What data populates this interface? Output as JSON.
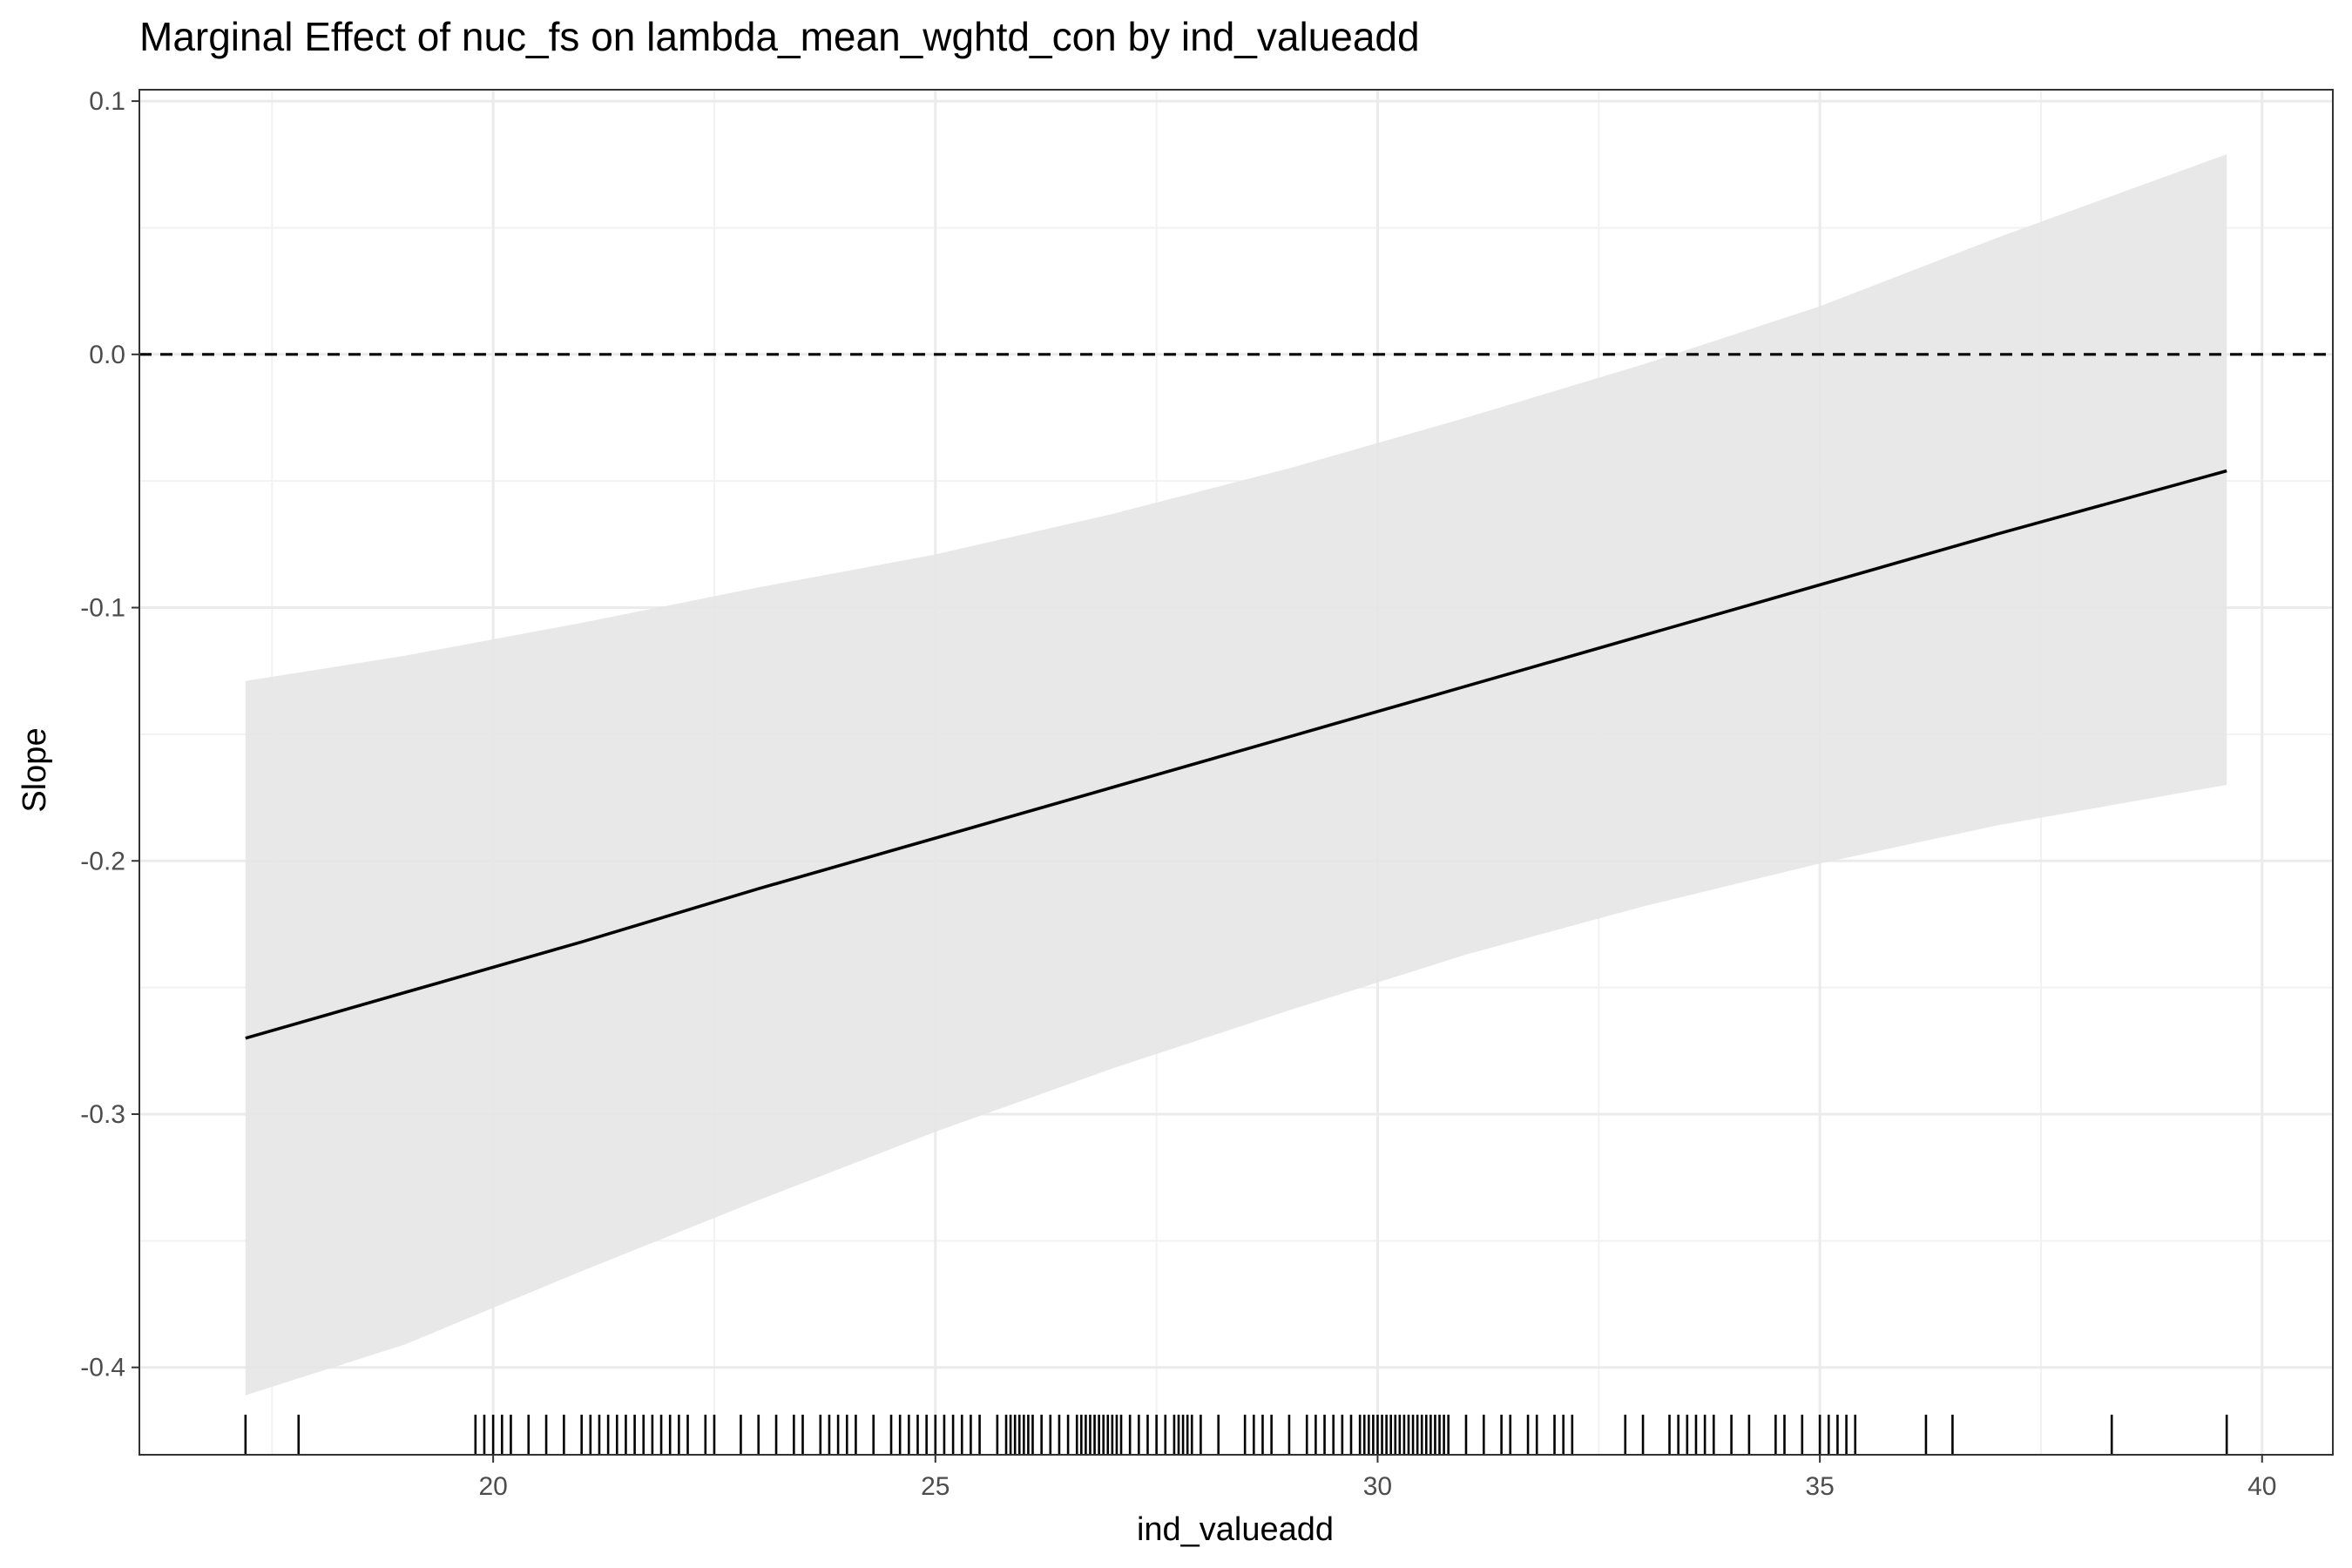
{
  "chart_data": {
    "type": "line",
    "title": "Marginal Effect of nuc_fs on lambda_mean_wghtd_con by ind_valueadd",
    "xlabel": "ind_valueadd",
    "ylabel": "Slope",
    "xlim": [
      16.0,
      40.8
    ],
    "ylim": [
      -0.4345,
      0.1045
    ],
    "x_ticks": [
      20,
      25,
      30,
      35,
      40
    ],
    "x_tick_labels": [
      "20",
      "25",
      "30",
      "35",
      "40"
    ],
    "y_ticks": [
      -0.4,
      -0.3,
      -0.2,
      -0.1,
      0.0,
      0.1
    ],
    "y_tick_labels": [
      "-0.4",
      "-0.3",
      "-0.2",
      "-0.1",
      "0.0",
      "0.1"
    ],
    "grid": true,
    "reference_line": {
      "y": 0.0,
      "style": "dashed"
    },
    "series": [
      {
        "x": [
          17.2,
          19,
          21,
          23,
          25,
          27,
          29,
          31,
          33,
          35,
          37,
          39.6
        ],
        "y": [
          -0.27,
          -0.252,
          -0.232,
          -0.211,
          -0.191,
          -0.171,
          -0.151,
          -0.131,
          -0.111,
          -0.091,
          -0.071,
          -0.046
        ],
        "ci_lower": [
          -0.411,
          -0.391,
          -0.362,
          -0.334,
          -0.307,
          -0.282,
          -0.259,
          -0.237,
          -0.218,
          -0.201,
          -0.186,
          -0.17
        ],
        "ci_upper": [
          -0.129,
          -0.119,
          -0.106,
          -0.092,
          -0.079,
          -0.063,
          -0.045,
          -0.025,
          -0.004,
          0.019,
          0.046,
          0.079
        ]
      }
    ],
    "rug_x": [
      17.2,
      17.8,
      19.8,
      19.9,
      20.0,
      20.1,
      20.2,
      20.4,
      20.6,
      20.8,
      21.0,
      21.1,
      21.2,
      21.3,
      21.4,
      21.5,
      21.6,
      21.7,
      21.8,
      21.9,
      22.0,
      22.1,
      22.2,
      22.4,
      22.5,
      22.8,
      23.0,
      23.2,
      23.4,
      23.5,
      23.7,
      23.8,
      23.9,
      24.0,
      24.1,
      24.3,
      24.5,
      24.6,
      24.7,
      24.8,
      24.9,
      25.0,
      25.1,
      25.2,
      25.3,
      25.4,
      25.5,
      25.7,
      25.8,
      25.85,
      25.9,
      25.95,
      26.0,
      26.05,
      26.1,
      26.2,
      26.3,
      26.4,
      26.5,
      26.6,
      26.65,
      26.7,
      26.75,
      26.8,
      26.85,
      26.9,
      26.95,
      27.0,
      27.05,
      27.1,
      27.2,
      27.3,
      27.4,
      27.5,
      27.6,
      27.7,
      27.75,
      27.8,
      27.85,
      27.9,
      28.0,
      28.2,
      28.5,
      28.6,
      28.7,
      28.8,
      29.0,
      29.2,
      29.3,
      29.4,
      29.5,
      29.6,
      29.7,
      29.8,
      29.85,
      29.9,
      29.95,
      30.0,
      30.05,
      30.1,
      30.15,
      30.2,
      30.25,
      30.3,
      30.35,
      30.4,
      30.45,
      30.5,
      30.55,
      30.6,
      30.65,
      30.7,
      30.75,
      30.8,
      31.0,
      31.2,
      31.4,
      31.5,
      31.7,
      31.8,
      32.0,
      32.1,
      32.2,
      32.8,
      33.0,
      33.3,
      33.4,
      33.5,
      33.6,
      33.7,
      33.8,
      34.0,
      34.2,
      34.5,
      34.6,
      34.8,
      35.0,
      35.1,
      35.2,
      35.3,
      35.4,
      36.2,
      36.5,
      38.3,
      39.6
    ]
  }
}
